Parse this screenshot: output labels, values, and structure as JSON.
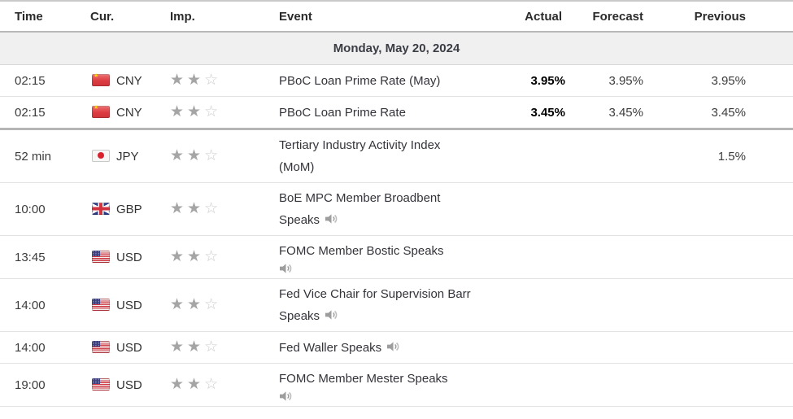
{
  "table_header": {
    "columns": [
      "Time",
      "Cur.",
      "Imp.",
      "Event",
      "Actual",
      "Forecast",
      "Previous"
    ]
  },
  "date_header": "Monday, May 20, 2024",
  "importance_scale_max": 3,
  "colors": {
    "actual_bold": "#000000",
    "body_text": "#333333",
    "day_row_background": "#f0f0f1",
    "star_filled": "#a5a5a5",
    "star_empty": "#cccccc",
    "time_marker_line": "#b5b5b5"
  },
  "rows": [
    {
      "time": "02:15",
      "currency": "CNY",
      "flag": "CN",
      "importance": 2,
      "event": "PBoC Loan Prime Rate (May)",
      "actual": "3.95%",
      "forecast": "3.95%",
      "previous": "3.95%",
      "speaker": false
    },
    {
      "time": "02:15",
      "currency": "CNY",
      "flag": "CN",
      "importance": 2,
      "event": "PBoC Loan Prime Rate",
      "actual": "3.45%",
      "forecast": "3.45%",
      "previous": "3.45%",
      "speaker": false
    },
    {
      "time": "52 min",
      "currency": "JPY",
      "flag": "JP",
      "importance": 2,
      "event": "Tertiary Industry Activity Index (MoM)",
      "actual": "",
      "forecast": "",
      "previous": "1.5%",
      "speaker": false
    },
    {
      "time": "10:00",
      "currency": "GBP",
      "flag": "GB",
      "importance": 2,
      "event": "BoE MPC Member Broadbent Speaks",
      "actual": "",
      "forecast": "",
      "previous": "",
      "speaker": true
    },
    {
      "time": "13:45",
      "currency": "USD",
      "flag": "US",
      "importance": 2,
      "event": "FOMC Member Bostic Speaks",
      "actual": "",
      "forecast": "",
      "previous": "",
      "speaker": true
    },
    {
      "time": "14:00",
      "currency": "USD",
      "flag": "US",
      "importance": 2,
      "event": "Fed Vice Chair for Supervision Barr Speaks",
      "actual": "",
      "forecast": "",
      "previous": "",
      "speaker": true
    },
    {
      "time": "14:00",
      "currency": "USD",
      "flag": "US",
      "importance": 2,
      "event": "Fed Waller Speaks",
      "actual": "",
      "forecast": "",
      "previous": "",
      "speaker": true
    },
    {
      "time": "19:00",
      "currency": "USD",
      "flag": "US",
      "importance": 2,
      "event": "FOMC Member Mester Speaks",
      "actual": "",
      "forecast": "",
      "previous": "",
      "speaker": true
    }
  ]
}
